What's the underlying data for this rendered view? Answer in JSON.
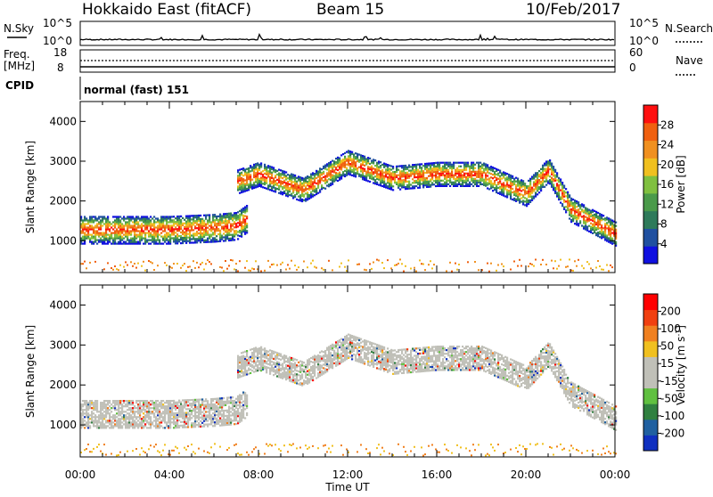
{
  "header": {
    "station": "Hokkaido East (fitACF)",
    "beam": "Beam 15",
    "date": "10/Feb/2017"
  },
  "strip": {
    "nsky_label": "N.Sky",
    "nsearch_label": "N.Search",
    "noise_ticks": [
      "10^5",
      "10^0"
    ],
    "freq_label": "Freq.",
    "freq_unit": "[MHz]",
    "freq_ticks": [
      "18",
      "8"
    ],
    "nave_label": "Nave",
    "nave_ticks": [
      "60",
      "0"
    ],
    "cpid_label": "CPID",
    "cpid_value": "normal (fast) 151"
  },
  "colors": {
    "power_scale": [
      "#1010e0",
      "#2050a0",
      "#2e7a5a",
      "#4a9a4a",
      "#80c040",
      "#f0c020",
      "#f09020",
      "#f06010",
      "#ff1010"
    ],
    "velocity_scale": [
      "#1030c0",
      "#2060a0",
      "#308040",
      "#60c040",
      "#c0c0b8",
      "#c0c0b8",
      "#f0c020",
      "#f08020",
      "#f04010",
      "#ff0000"
    ]
  },
  "chart_data": [
    {
      "type": "heatmap",
      "panel": "power",
      "ylabel": "Slant Range [km]",
      "ylim": [
        200,
        4500
      ],
      "y_ticks": [
        1000,
        2000,
        3000,
        4000
      ],
      "xlabel": "Time UT",
      "x_ticks": [
        "00:00",
        "04:00",
        "08:00",
        "12:00",
        "16:00",
        "20:00",
        "00:00"
      ],
      "colorbar_label": "Power [dB]",
      "colorbar_ticks": [
        4,
        8,
        12,
        16,
        20,
        24,
        28
      ],
      "colorbar_range": [
        0,
        32
      ],
      "bands": [
        {
          "name": "lower",
          "x": [
            0,
            2,
            4,
            6,
            7,
            7.5
          ],
          "y": [
            1300,
            1300,
            1300,
            1350,
            1400,
            1600
          ]
        },
        {
          "name": "upper",
          "x": [
            7,
            8,
            10,
            12,
            14,
            16,
            18,
            20,
            21,
            22,
            24
          ],
          "y": [
            2500,
            2700,
            2300,
            3000,
            2600,
            2700,
            2700,
            2200,
            2800,
            1800,
            1200
          ]
        }
      ]
    },
    {
      "type": "heatmap",
      "panel": "velocity",
      "ylabel": "Slant Range [km]",
      "ylim": [
        200,
        4500
      ],
      "y_ticks": [
        1000,
        2000,
        3000,
        4000
      ],
      "xlabel": "Time UT",
      "x_ticks": [
        "00:00",
        "04:00",
        "08:00",
        "12:00",
        "16:00",
        "20:00",
        "00:00"
      ],
      "colorbar_label": "Velocity [m s",
      "colorbar_unit_exp": "-1",
      "colorbar_ticks": [
        200,
        100,
        50,
        15,
        -15,
        -50,
        -100,
        -200
      ],
      "colorbar_range": [
        -250,
        250
      ]
    }
  ]
}
